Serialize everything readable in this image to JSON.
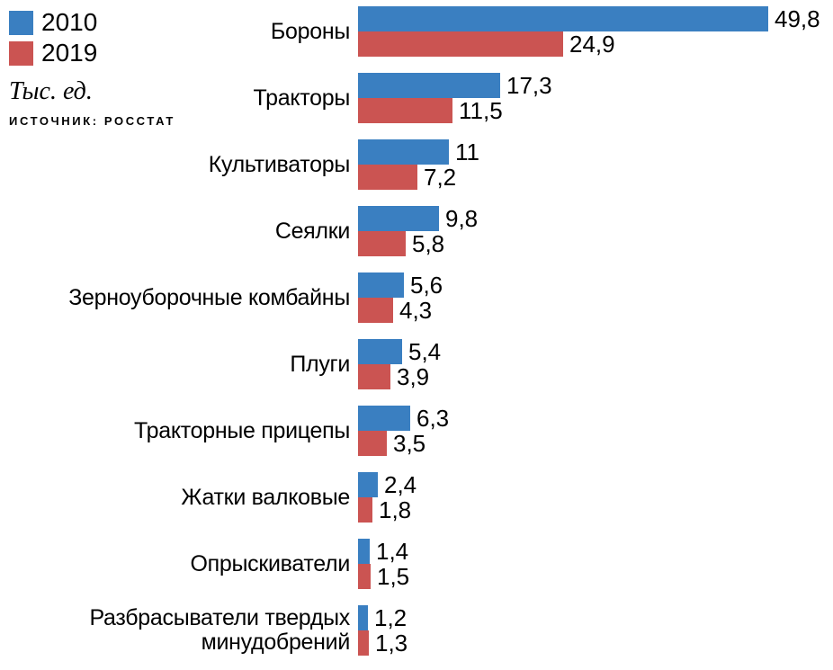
{
  "legend": {
    "items": [
      {
        "label": "2010",
        "color": "#3A7FC1"
      },
      {
        "label": "2019",
        "color": "#CB5452"
      }
    ]
  },
  "unit_label": "Тыс. ед.",
  "source_label": "ИСТОЧНИК: РОССТАТ",
  "chart_data": {
    "type": "bar",
    "orientation": "horizontal",
    "title": "",
    "xlabel": "",
    "ylabel": "",
    "unit": "Тыс. ед.",
    "source": "Росстат",
    "grid": false,
    "legend_position": "top-left",
    "xlim": [
      0,
      52
    ],
    "categories": [
      "Бороны",
      "Тракторы",
      "Культиваторы",
      "Сеялки",
      "Зерноуборочные комбайны",
      "Плуги",
      "Тракторные прицепы",
      "Жатки валковые",
      "Опрыскиватели",
      "Разбрасыватели твердых\nминудобрений"
    ],
    "series": [
      {
        "name": "2010",
        "color": "#3A7FC1",
        "values": [
          49.8,
          17.3,
          11,
          9.8,
          5.6,
          5.4,
          6.3,
          2.4,
          1.4,
          1.2
        ],
        "labels": [
          "49,8",
          "17,3",
          "11",
          "9,8",
          "5,6",
          "5,4",
          "6,3",
          "2,4",
          "1,4",
          "1,2"
        ]
      },
      {
        "name": "2019",
        "color": "#CB5452",
        "values": [
          24.9,
          11.5,
          7.2,
          5.8,
          4.3,
          3.9,
          3.5,
          1.8,
          1.5,
          1.3
        ],
        "labels": [
          "24,9",
          "11,5",
          "7,2",
          "5,8",
          "4,3",
          "3,9",
          "3,5",
          "1,8",
          "1,5",
          "1,3"
        ]
      }
    ]
  }
}
